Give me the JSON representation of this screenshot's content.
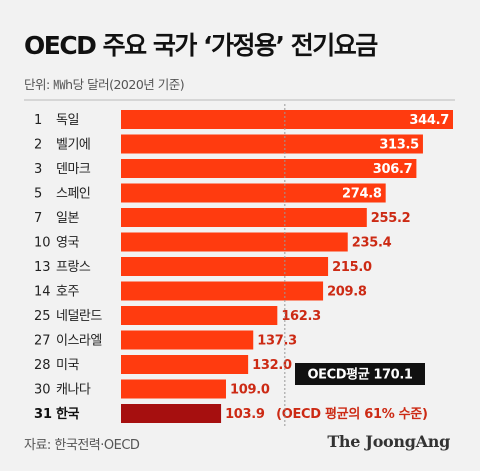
{
  "title": "OECD 주요 국가 ‘가정용’ 전기요금",
  "unit_note": "단위: ㎿h당 달러(2020년 기준)",
  "source": "자료: 한국전력·OECD",
  "logo": "The JoongAng",
  "colors": {
    "bar": "#ff3b0f",
    "highlight_bar": "#a60f0f",
    "label_outside": "#cc2a14",
    "label_inside": "#ffffff",
    "avg_line": "#999999",
    "avg_box": "#111111",
    "background": "#f2f2f2"
  },
  "chart_data": {
    "type": "bar",
    "orientation": "horizontal",
    "title": "OECD 주요 국가 ‘가정용’ 전기요금",
    "unit": "㎿h당 달러(2020년 기준)",
    "ranks": [
      "1",
      "2",
      "3",
      "5",
      "7",
      "10",
      "13",
      "14",
      "25",
      "27",
      "28",
      "30",
      "31"
    ],
    "categories": [
      "독일",
      "벨기에",
      "덴마크",
      "스페인",
      "일본",
      "영국",
      "프랑스",
      "호주",
      "네덜란드",
      "이스라엘",
      "미국",
      "캐나다",
      "한국"
    ],
    "values": [
      344.7,
      313.5,
      306.7,
      274.8,
      255.2,
      235.4,
      215.0,
      209.8,
      162.3,
      137.3,
      132.0,
      109.0,
      103.9
    ],
    "value_labels": [
      "344.7",
      "313.5",
      "306.7",
      "274.8",
      "255.2",
      "235.4",
      "215.0",
      "209.8",
      "162.3",
      "137.3",
      "132.0",
      "109.0",
      "103.9"
    ],
    "highlight_index": 12,
    "highlight_note": "(OECD 평균의 61% 수준)",
    "reference_line": {
      "label": "OECD평균 170.1",
      "value": 170.1
    },
    "xlim": [
      0,
      344.7
    ]
  }
}
